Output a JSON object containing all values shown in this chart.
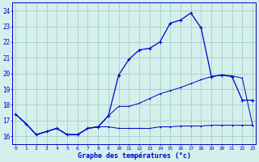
{
  "title": "Graphe des températures (°c)",
  "bg_color": "#d4f0ec",
  "grid_color": "#aaccc8",
  "line_color": "#0000cc",
  "x_labels": [
    "0",
    "1",
    "2",
    "3",
    "4",
    "5",
    "6",
    "7",
    "8",
    "9",
    "10",
    "11",
    "12",
    "13",
    "14",
    "15",
    "16",
    "17",
    "18",
    "19",
    "20",
    "21",
    "22",
    "23"
  ],
  "ylim": [
    15.5,
    24.5
  ],
  "yticks": [
    16,
    17,
    18,
    19,
    20,
    21,
    22,
    23,
    24
  ],
  "curve1_y": [
    17.4,
    16.8,
    16.1,
    16.3,
    16.5,
    16.1,
    16.1,
    16.5,
    16.6,
    17.3,
    19.9,
    20.9,
    21.5,
    21.6,
    22.0,
    23.2,
    23.4,
    23.85,
    22.9,
    19.8,
    19.9,
    19.8,
    18.3,
    18.3
  ],
  "curve2_y": [
    17.4,
    16.8,
    16.1,
    16.3,
    16.5,
    16.1,
    16.1,
    16.5,
    16.6,
    17.3,
    17.9,
    17.9,
    18.1,
    18.4,
    18.7,
    18.9,
    19.1,
    19.35,
    19.6,
    19.8,
    19.9,
    19.85,
    19.7,
    16.7
  ],
  "curve3_y": [
    17.4,
    16.8,
    16.1,
    16.3,
    16.5,
    16.1,
    16.1,
    16.5,
    16.6,
    16.6,
    16.5,
    16.5,
    16.5,
    16.5,
    16.6,
    16.6,
    16.65,
    16.65,
    16.65,
    16.7,
    16.7,
    16.7,
    16.7,
    16.7
  ]
}
